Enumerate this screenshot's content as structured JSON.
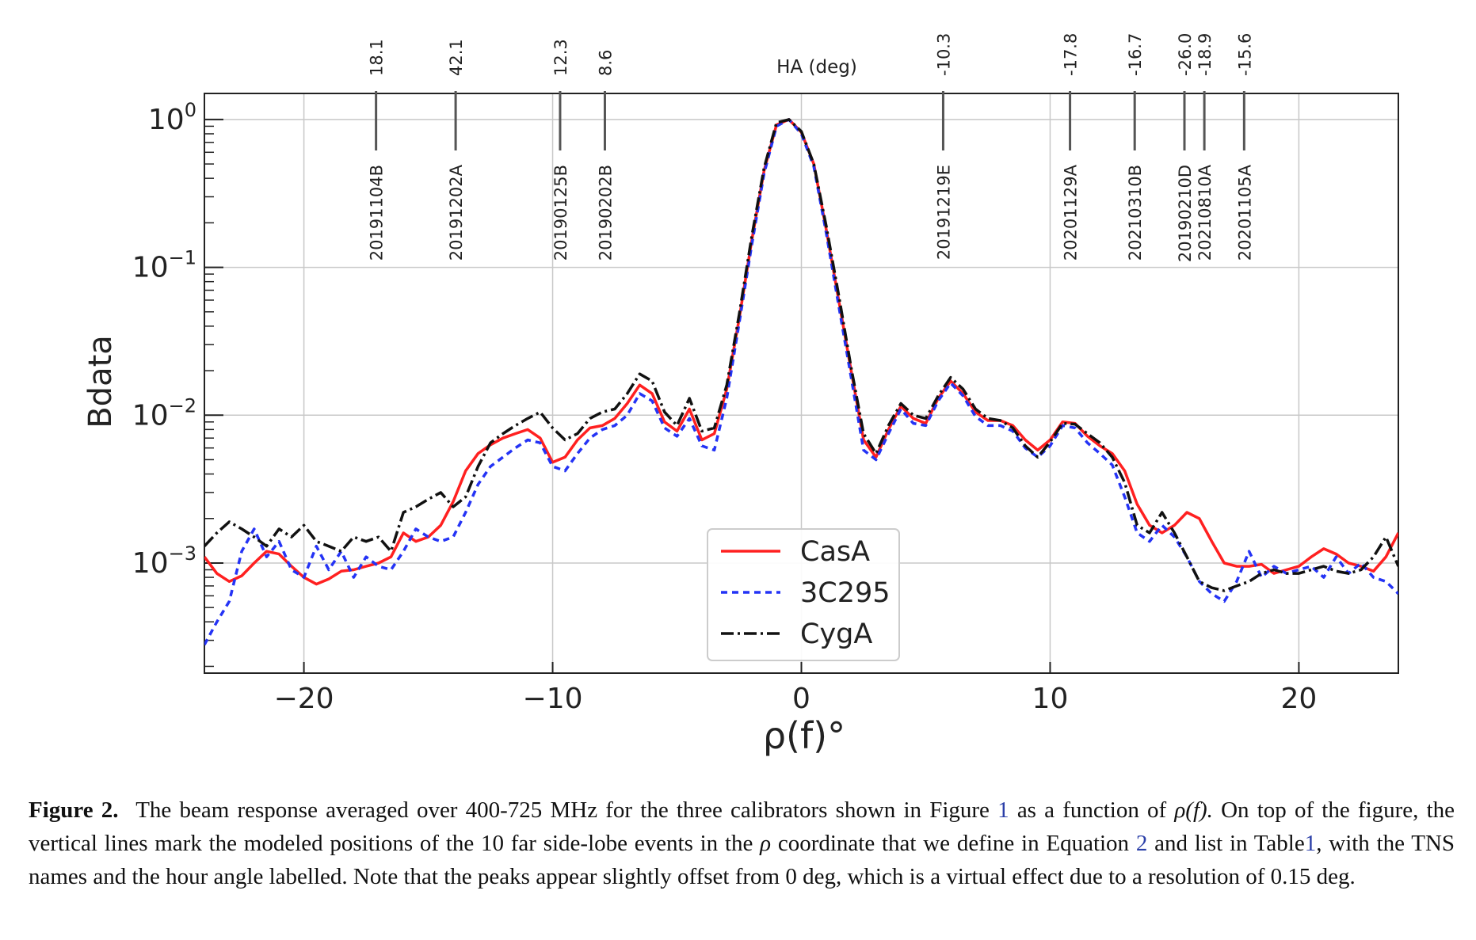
{
  "chart_data": {
    "type": "line",
    "xlabel": "ρ(f)°",
    "ylabel": "Bdata",
    "top_axis_label": "HA (deg)",
    "log_y": true,
    "xlim": [
      -24,
      24
    ],
    "ylim": [
      0.00018,
      1.5
    ],
    "grid": true,
    "legend_position": "lower-center",
    "x_ticks": [
      {
        "value": -20,
        "label": "−20"
      },
      {
        "value": -10,
        "label": "−10"
      },
      {
        "value": 0,
        "label": "0"
      },
      {
        "value": 10,
        "label": "10"
      },
      {
        "value": 20,
        "label": "20"
      }
    ],
    "y_ticks": [
      {
        "value": 1,
        "base": "10",
        "exp": "0"
      },
      {
        "value": 0.1,
        "base": "10",
        "exp": "−1"
      },
      {
        "value": 0.01,
        "base": "10",
        "exp": "−2"
      },
      {
        "value": 0.001,
        "base": "10",
        "exp": "−3"
      }
    ],
    "events": [
      {
        "name": "20191104B",
        "ha": "18.1",
        "x": -17.1
      },
      {
        "name": "20191202A",
        "ha": "42.1",
        "x": -13.9
      },
      {
        "name": "20190125B",
        "ha": "12.3",
        "x": -9.7
      },
      {
        "name": "20190202B",
        "ha": "8.6",
        "x": -7.9
      },
      {
        "name": "20191219E",
        "ha": "-10.3",
        "x": 5.7
      },
      {
        "name": "20201129A",
        "ha": "-17.8",
        "x": 10.8
      },
      {
        "name": "20210310B",
        "ha": "-16.7",
        "x": 13.4
      },
      {
        "name": "20190210D",
        "ha": "-26.0",
        "x": 15.4
      },
      {
        "name": "20210810A",
        "ha": "-18.9",
        "x": 16.2
      },
      {
        "name": "20201105A",
        "ha": "-15.6",
        "x": 17.8
      }
    ],
    "series": [
      {
        "name": "CasA",
        "color": "#ff2020",
        "dash": "solid",
        "x": [
          -24,
          -23.5,
          -23,
          -22.5,
          -22,
          -21.5,
          -21,
          -20.5,
          -20,
          -19.5,
          -19,
          -18.5,
          -18,
          -17.5,
          -17,
          -16.5,
          -16,
          -15.5,
          -15,
          -14.5,
          -14,
          -13.5,
          -13,
          -12.5,
          -12,
          -11.5,
          -11,
          -10.5,
          -10,
          -9.5,
          -9,
          -8.5,
          -8,
          -7.5,
          -7,
          -6.5,
          -6,
          -5.5,
          -5,
          -4.5,
          -4,
          -3.5,
          -3,
          -2.5,
          -2,
          -1.5,
          -1,
          -0.5,
          0,
          0.5,
          1,
          1.5,
          2,
          2.5,
          3,
          3.5,
          4,
          4.5,
          5,
          5.5,
          6,
          6.5,
          7,
          7.5,
          8,
          8.5,
          9,
          9.5,
          10,
          10.5,
          11,
          11.5,
          12,
          12.5,
          13,
          13.5,
          14,
          14.5,
          15,
          15.5,
          16,
          16.5,
          17,
          17.5,
          18,
          18.5,
          19,
          19.5,
          20,
          20.5,
          21,
          21.5,
          22,
          22.5,
          23,
          23.5,
          24
        ],
        "values": [
          0.0011,
          0.00085,
          0.00075,
          0.00082,
          0.001,
          0.0012,
          0.00115,
          0.00095,
          0.0008,
          0.00072,
          0.00078,
          0.00088,
          0.0009,
          0.00095,
          0.001,
          0.0011,
          0.0016,
          0.0014,
          0.0015,
          0.0018,
          0.0026,
          0.0042,
          0.0055,
          0.0063,
          0.007,
          0.0075,
          0.008,
          0.007,
          0.0048,
          0.0052,
          0.0068,
          0.0082,
          0.0085,
          0.0095,
          0.012,
          0.016,
          0.014,
          0.009,
          0.0078,
          0.011,
          0.0068,
          0.0075,
          0.015,
          0.045,
          0.15,
          0.45,
          0.92,
          1.0,
          0.82,
          0.5,
          0.18,
          0.06,
          0.02,
          0.0068,
          0.0052,
          0.008,
          0.0115,
          0.0095,
          0.0088,
          0.013,
          0.017,
          0.014,
          0.0105,
          0.0092,
          0.0092,
          0.0085,
          0.0068,
          0.0058,
          0.0068,
          0.009,
          0.0088,
          0.0072,
          0.0062,
          0.0055,
          0.0042,
          0.0025,
          0.0018,
          0.0016,
          0.0018,
          0.0022,
          0.002,
          0.0014,
          0.001,
          0.00095,
          0.00095,
          0.00098,
          0.00085,
          0.0009,
          0.00095,
          0.0011,
          0.00125,
          0.00115,
          0.001,
          0.00095,
          0.00088,
          0.0011,
          0.0016
        ]
      },
      {
        "name": "3C295",
        "color": "#2433f5",
        "dash": "8,6",
        "x": [
          -24,
          -23.5,
          -23,
          -22.5,
          -22,
          -21.5,
          -21,
          -20.5,
          -20,
          -19.5,
          -19,
          -18.5,
          -18,
          -17.5,
          -17,
          -16.5,
          -16,
          -15.5,
          -15,
          -14.5,
          -14,
          -13.5,
          -13,
          -12.5,
          -12,
          -11.5,
          -11,
          -10.5,
          -10,
          -9.5,
          -9,
          -8.5,
          -8,
          -7.5,
          -7,
          -6.5,
          -6,
          -5.5,
          -5,
          -4.5,
          -4,
          -3.5,
          -3,
          -2.5,
          -2,
          -1.5,
          -1,
          -0.5,
          0,
          0.5,
          1,
          1.5,
          2,
          2.5,
          3,
          3.5,
          4,
          4.5,
          5,
          5.5,
          6,
          6.5,
          7,
          7.5,
          8,
          8.5,
          9,
          9.5,
          10,
          10.5,
          11,
          11.5,
          12,
          12.5,
          13,
          13.5,
          14,
          14.5,
          15,
          15.5,
          16,
          16.5,
          17,
          17.5,
          18,
          18.5,
          19,
          19.5,
          20,
          20.5,
          21,
          21.5,
          22,
          22.5,
          23,
          23.5,
          24
        ],
        "values": [
          0.00028,
          0.0004,
          0.00055,
          0.0012,
          0.0017,
          0.0011,
          0.0014,
          0.0009,
          0.0008,
          0.0013,
          0.0009,
          0.0012,
          0.0008,
          0.0011,
          0.00095,
          0.0009,
          0.0012,
          0.0017,
          0.0015,
          0.0014,
          0.0015,
          0.0022,
          0.0034,
          0.0045,
          0.0052,
          0.006,
          0.0068,
          0.0065,
          0.0045,
          0.0042,
          0.0055,
          0.007,
          0.008,
          0.0085,
          0.01,
          0.014,
          0.0125,
          0.0082,
          0.0072,
          0.0095,
          0.0062,
          0.0058,
          0.013,
          0.042,
          0.14,
          0.43,
          0.9,
          1.0,
          0.8,
          0.48,
          0.17,
          0.055,
          0.018,
          0.0058,
          0.005,
          0.0075,
          0.011,
          0.0088,
          0.0085,
          0.0125,
          0.0165,
          0.0135,
          0.0098,
          0.0085,
          0.0085,
          0.0078,
          0.006,
          0.0052,
          0.0062,
          0.0085,
          0.0082,
          0.0065,
          0.0055,
          0.0046,
          0.0028,
          0.0016,
          0.0014,
          0.0018,
          0.0015,
          0.0011,
          0.00075,
          0.00062,
          0.00055,
          0.00075,
          0.0012,
          0.0008,
          0.00095,
          0.00085,
          0.0009,
          0.00095,
          0.0008,
          0.0011,
          0.00085,
          0.001,
          0.0008,
          0.00075,
          0.00062
        ]
      },
      {
        "name": "CygA",
        "color": "#111111",
        "dash": "16,5,3,5",
        "x": [
          -24,
          -23.5,
          -23,
          -22.5,
          -22,
          -21.5,
          -21,
          -20.5,
          -20,
          -19.5,
          -19,
          -18.5,
          -18,
          -17.5,
          -17,
          -16.5,
          -16,
          -15.5,
          -15,
          -14.5,
          -14,
          -13.5,
          -13,
          -12.5,
          -12,
          -11.5,
          -11,
          -10.5,
          -10,
          -9.5,
          -9,
          -8.5,
          -8,
          -7.5,
          -7,
          -6.5,
          -6,
          -5.5,
          -5,
          -4.5,
          -4,
          -3.5,
          -3,
          -2.5,
          -2,
          -1.5,
          -1,
          -0.5,
          0,
          0.5,
          1,
          1.5,
          2,
          2.5,
          3,
          3.5,
          4,
          4.5,
          5,
          5.5,
          6,
          6.5,
          7,
          7.5,
          8,
          8.5,
          9,
          9.5,
          10,
          10.5,
          11,
          11.5,
          12,
          12.5,
          13,
          13.5,
          14,
          14.5,
          15,
          15.5,
          16,
          16.5,
          17,
          17.5,
          18,
          18.5,
          19,
          19.5,
          20,
          20.5,
          21,
          21.5,
          22,
          22.5,
          23,
          23.5,
          24
        ],
        "values": [
          0.0013,
          0.0016,
          0.0019,
          0.0017,
          0.0015,
          0.0013,
          0.0017,
          0.0015,
          0.0018,
          0.0014,
          0.0013,
          0.0012,
          0.0015,
          0.0014,
          0.0015,
          0.0012,
          0.0022,
          0.0024,
          0.0027,
          0.003,
          0.0024,
          0.0028,
          0.0045,
          0.0065,
          0.0075,
          0.0085,
          0.0095,
          0.0105,
          0.0082,
          0.0068,
          0.0075,
          0.0095,
          0.0105,
          0.011,
          0.014,
          0.019,
          0.017,
          0.0105,
          0.0085,
          0.013,
          0.0078,
          0.0082,
          0.016,
          0.048,
          0.16,
          0.47,
          0.95,
          1.0,
          0.83,
          0.5,
          0.19,
          0.065,
          0.021,
          0.0075,
          0.0055,
          0.0085,
          0.012,
          0.01,
          0.0095,
          0.0135,
          0.018,
          0.015,
          0.011,
          0.0095,
          0.0092,
          0.0082,
          0.0062,
          0.0052,
          0.0066,
          0.0088,
          0.0087,
          0.0075,
          0.0065,
          0.0052,
          0.0035,
          0.0018,
          0.0016,
          0.0022,
          0.0016,
          0.0011,
          0.00075,
          0.00068,
          0.00065,
          0.0007,
          0.00075,
          0.00085,
          0.0009,
          0.00085,
          0.00085,
          0.0009,
          0.00095,
          0.00088,
          0.00085,
          0.0009,
          0.0011,
          0.0015,
          0.00095
        ]
      }
    ]
  },
  "caption": {
    "label": "Figure 2.",
    "p1": "The beam response averaged over 400-725 MHz for the three calibrators shown in Figure",
    "ref1": "1",
    "p2": "as a function of",
    "math_rho_f": "ρ(f).",
    "p3": "On top of the figure, the vertical lines mark the modeled positions of the 10 far side-lobe events in the",
    "math_rho": "ρ",
    "p4": "coordinate that we define in Equation",
    "ref2": "2",
    "p5": "and list in Table",
    "ref3": "1",
    "p6": ", with the TNS names and the hour angle labelled. Note that the peaks appear slightly offset from 0 deg, which is a virtual effect due to a resolution of 0.15 deg."
  }
}
